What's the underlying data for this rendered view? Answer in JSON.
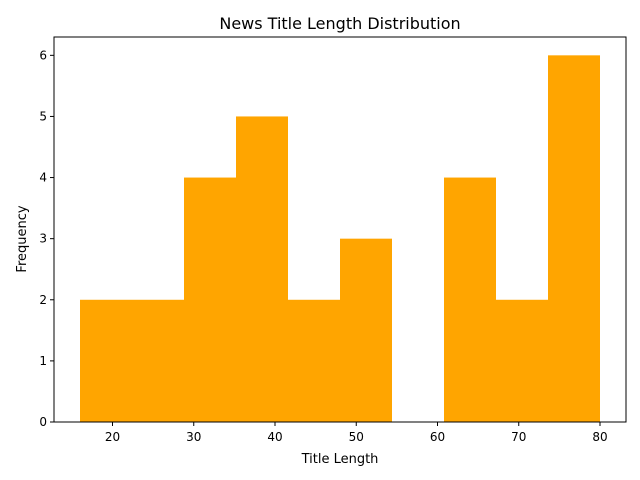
{
  "chart_data": {
    "type": "bar",
    "subtype": "histogram",
    "title": "News Title Length Distribution",
    "xlabel": "Title Length",
    "ylabel": "Frequency",
    "bin_edges": [
      16,
      22.4,
      28.8,
      35.2,
      41.6,
      48,
      54.4,
      60.8,
      67.2,
      73.6,
      80
    ],
    "values": [
      2,
      2,
      4,
      5,
      2,
      3,
      0,
      4,
      2,
      6
    ],
    "xlim": [
      12.8,
      83.2
    ],
    "ylim": [
      0,
      6.3
    ],
    "xticks": [
      20,
      30,
      40,
      50,
      60,
      70,
      80
    ],
    "yticks": [
      0,
      1,
      2,
      3,
      4,
      5,
      6
    ],
    "bar_color": "#ffa500",
    "grid": false
  }
}
